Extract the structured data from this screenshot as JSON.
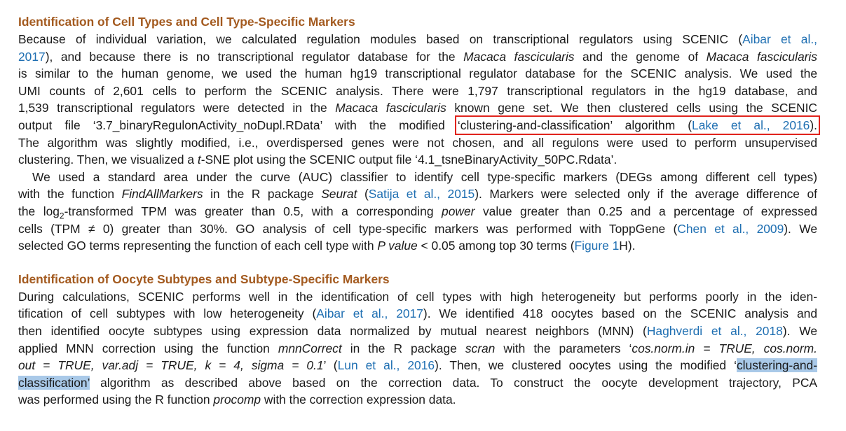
{
  "section1": {
    "heading": "Identification of Cell Types and Cell Type-Specific Markers",
    "p1": {
      "t01": "Because of individual variation, we calculated regulation modules based on transcriptional regulators using SCENIC (",
      "c01": "Aibar et al.,",
      "c01b": "2017",
      "t02": "), and because there is no transcriptional regulator database for the ",
      "i01": "Macaca fascicularis",
      "t03": " and the genome of ",
      "i02": "Macaca fascicularis",
      "t04": "is similar to the human genome, we used the human hg19 transcriptional regulator database for the SCENIC analysis. We used the",
      "t05": "UMI counts of 2,601 cells to perform the SCENIC analysis. There were 1,797 transcriptional regulators in the hg19 database, and",
      "t06": "1,539 transcriptional regulators were detected in the ",
      "i03": "Macaca fascicularis",
      "t07": " known gene set. We then clustered cells using the SCENIC",
      "t08": "output file ‘3.7_binaryRegulonActivity_noDupl.RData’ with the modified",
      "boxed": "‘clustering-and-classification’ algorithm (",
      "c02": "Lake et al., 2016",
      "t09": ").",
      "t10": "The algorithm was slightly modified, i.e., overdispersed genes were not chosen, and all regulons were used to perform unsupervised",
      "t11": "clustering. Then, we visualized a ",
      "i04": "t",
      "t12": "-SNE plot using the SCENIC output file ‘4.1_tsneBinaryActivity_50PC.Rdata’."
    },
    "p2": {
      "t01": "We used a standard area under the curve (AUC) classifier to identify cell type-specific markers (DEGs among different cell types)",
      "t02": "with the function ",
      "i01": "FindAllMarkers",
      "t03": " in the R package ",
      "i02": "Seurat",
      "t04": " (",
      "c01": "Satija et al., 2015",
      "t05": "). Markers were selected only if the average difference of",
      "t06": "the log",
      "sub01": "2",
      "t07": "-transformed TPM was greater than 0.5, with a corresponding ",
      "i03": "power",
      "t08": " value greater than 0.25 and a percentage of expressed",
      "t09": "cells (TPM ≠ 0) greater than 30%. GO analysis of cell type-specific markers was performed with ToppGene (",
      "c02": "Chen et al., 2009",
      "t10": "). We",
      "t11": "selected GO terms representing the function of each cell type with ",
      "i04": "P value",
      "t12": " < 0.05 among top 30 terms (",
      "c03": "Figure 1",
      "t13": "H)."
    }
  },
  "section2": {
    "heading": "Identification of Oocyte Subtypes and Subtype-Specific Markers",
    "p1": {
      "t01": "During calculations, SCENIC performs well in the identification of cell types with high heterogeneity but performs poorly in the iden-",
      "t02": "tification of cell subtypes with low heterogeneity (",
      "c01": "Aibar et al., 2017",
      "t03": "). We identified 418 oocytes based on the SCENIC analysis and",
      "t04": "then identified oocyte subtypes using expression data normalized by mutual nearest neighbors (MNN) (",
      "c02": "Haghverdi et al., 2018",
      "t05": "). We",
      "t06": "applied MNN correction using the function ",
      "i01": "mnnCorrect",
      "t07": " in the R package ",
      "i02": "scran",
      "t08": " with the parameters ‘",
      "i03": "cos.norm.in = TRUE, cos.norm.",
      "i04": "out = TRUE, var.adj = TRUE, k = 4, sigma = 0.1",
      "t09": "’ (",
      "c03": "Lun et al., 2016",
      "t10": "). Then, we clustered oocytes using the modified ‘",
      "hl01": "clustering-and-",
      "hl02": "classification’",
      "t11": " algorithm as described above based on the correction data. To construct the oocyte development trajectory, PCA",
      "t12": "was performed using the R function ",
      "i05": "procomp",
      "t13": " with the correction expression data."
    }
  }
}
